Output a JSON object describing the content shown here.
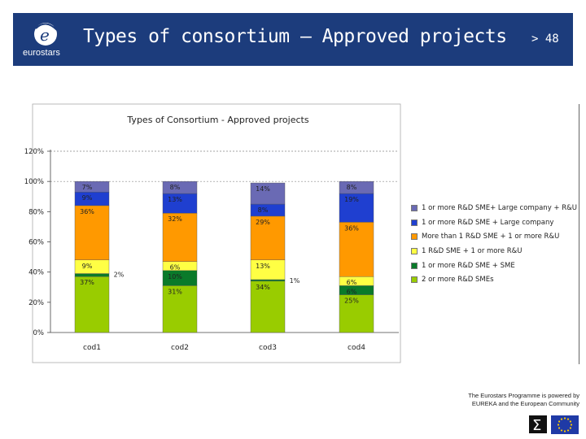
{
  "header": {
    "title": "Types of consortium – Approved projects",
    "page": "> 48",
    "logo_text": "eurostars"
  },
  "footer": {
    "line1": "The Eurostars Programme is powered by",
    "line2": "EUREKA and the European Community"
  },
  "colors": {
    "header_bg": "#1c3c7c",
    "series": [
      "#99cc00",
      "#0a7a2a",
      "#ffff44",
      "#ff9900",
      "#1f3fd0",
      "#6a6ab4"
    ]
  },
  "chart_data": {
    "type": "bar",
    "stacked": true,
    "title": "Types of Consortium - Approved projects",
    "categories": [
      "cod1",
      "cod2",
      "cod3",
      "cod4"
    ],
    "ylim": [
      0,
      120
    ],
    "yticks": [
      "0%",
      "20%",
      "40%",
      "60%",
      "80%",
      "100%",
      "120%"
    ],
    "gridlines": [
      100,
      120
    ],
    "legend_position": "right",
    "series": [
      {
        "name": "2 or more R&D SMEs",
        "values": [
          37,
          31,
          34,
          25
        ]
      },
      {
        "name": "1 or more R&D SME + SME",
        "values": [
          2,
          10,
          1,
          6
        ]
      },
      {
        "name": "1 R&D SME + 1 or more R&U",
        "values": [
          9,
          6,
          13,
          6
        ]
      },
      {
        "name": "More than 1 R&D SME + 1 or more R&U",
        "values": [
          36,
          32,
          29,
          36
        ]
      },
      {
        "name": "1 or more R&D SME + Large company",
        "values": [
          9,
          13,
          8,
          19
        ]
      },
      {
        "name": "1 or more R&D SME+ Large company + R&U",
        "values": [
          7,
          8,
          14,
          8
        ]
      }
    ],
    "labels": [
      [
        "37%",
        "2%",
        "9%",
        "36%",
        "9%",
        "7%"
      ],
      [
        "31%",
        "10%",
        "6%",
        "32%",
        "13%",
        "8%"
      ],
      [
        "34%",
        "1%",
        "13%",
        "29%",
        "8%",
        "14%"
      ],
      [
        "25%",
        "6%",
        "6%",
        "36%",
        "19%",
        "8%"
      ]
    ]
  }
}
